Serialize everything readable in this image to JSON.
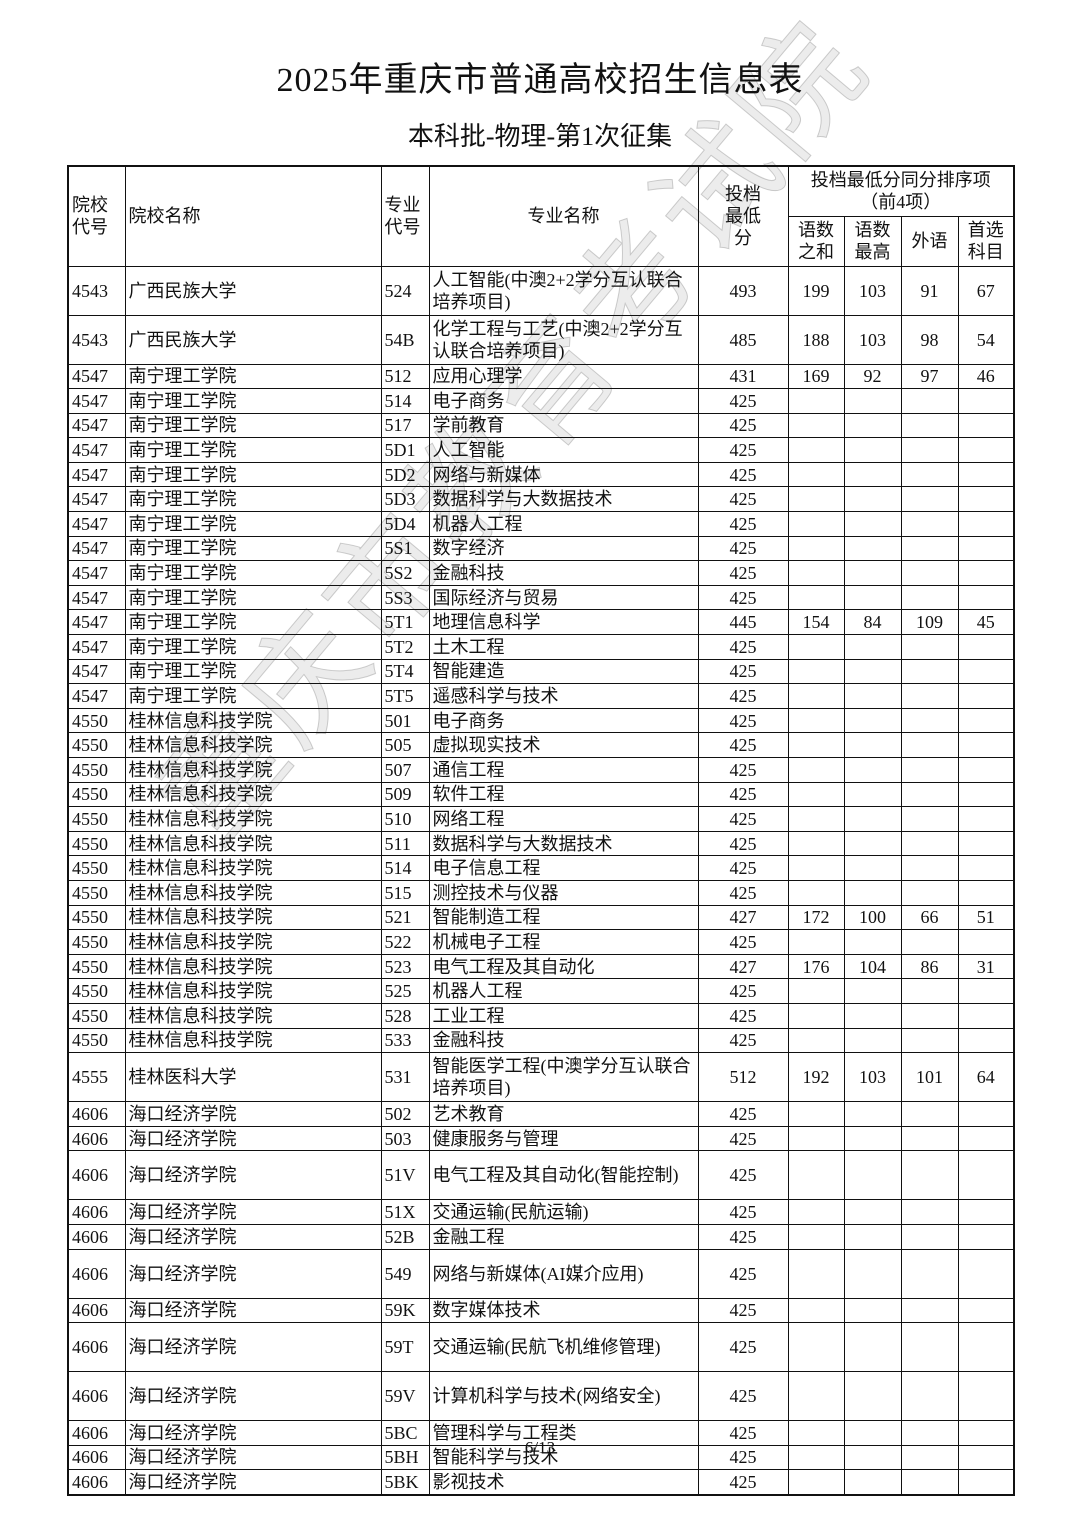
{
  "title": "2025年重庆市普通高校招生信息表",
  "subtitle": "本科批-物理-第1次征集",
  "headers": {
    "school_code": "院校代号",
    "school_name": "院校名称",
    "major_code": "专业代号",
    "major_name": "专业名称",
    "min_score": "投档最低分",
    "tiebreak_group": "投档最低分同分排序项（前4项）",
    "yushu_sum": "语数之和",
    "yushu_max": "语数最高",
    "foreign": "外语",
    "first_subject": "首选科目"
  },
  "rows": [
    [
      "4543",
      "广西民族大学",
      "524",
      "人工智能(中澳2+2学分互认联合培养项目)",
      "493",
      "199",
      "103",
      "91",
      "67"
    ],
    [
      "4543",
      "广西民族大学",
      "54B",
      "化学工程与工艺(中澳2+2学分互认联合培养项目)",
      "485",
      "188",
      "103",
      "98",
      "54"
    ],
    [
      "4547",
      "南宁理工学院",
      "512",
      "应用心理学",
      "431",
      "169",
      "92",
      "97",
      "46"
    ],
    [
      "4547",
      "南宁理工学院",
      "514",
      "电子商务",
      "425",
      "",
      "",
      "",
      ""
    ],
    [
      "4547",
      "南宁理工学院",
      "517",
      "学前教育",
      "425",
      "",
      "",
      "",
      ""
    ],
    [
      "4547",
      "南宁理工学院",
      "5D1",
      "人工智能",
      "425",
      "",
      "",
      "",
      ""
    ],
    [
      "4547",
      "南宁理工学院",
      "5D2",
      "网络与新媒体",
      "425",
      "",
      "",
      "",
      ""
    ],
    [
      "4547",
      "南宁理工学院",
      "5D3",
      "数据科学与大数据技术",
      "425",
      "",
      "",
      "",
      ""
    ],
    [
      "4547",
      "南宁理工学院",
      "5D4",
      "机器人工程",
      "425",
      "",
      "",
      "",
      ""
    ],
    [
      "4547",
      "南宁理工学院",
      "5S1",
      "数字经济",
      "425",
      "",
      "",
      "",
      ""
    ],
    [
      "4547",
      "南宁理工学院",
      "5S2",
      "金融科技",
      "425",
      "",
      "",
      "",
      ""
    ],
    [
      "4547",
      "南宁理工学院",
      "5S3",
      "国际经济与贸易",
      "425",
      "",
      "",
      "",
      ""
    ],
    [
      "4547",
      "南宁理工学院",
      "5T1",
      "地理信息科学",
      "445",
      "154",
      "84",
      "109",
      "45"
    ],
    [
      "4547",
      "南宁理工学院",
      "5T2",
      "土木工程",
      "425",
      "",
      "",
      "",
      ""
    ],
    [
      "4547",
      "南宁理工学院",
      "5T4",
      "智能建造",
      "425",
      "",
      "",
      "",
      ""
    ],
    [
      "4547",
      "南宁理工学院",
      "5T5",
      "遥感科学与技术",
      "425",
      "",
      "",
      "",
      ""
    ],
    [
      "4550",
      "桂林信息科技学院",
      "501",
      "电子商务",
      "425",
      "",
      "",
      "",
      ""
    ],
    [
      "4550",
      "桂林信息科技学院",
      "505",
      "虚拟现实技术",
      "425",
      "",
      "",
      "",
      ""
    ],
    [
      "4550",
      "桂林信息科技学院",
      "507",
      "通信工程",
      "425",
      "",
      "",
      "",
      ""
    ],
    [
      "4550",
      "桂林信息科技学院",
      "509",
      "软件工程",
      "425",
      "",
      "",
      "",
      ""
    ],
    [
      "4550",
      "桂林信息科技学院",
      "510",
      "网络工程",
      "425",
      "",
      "",
      "",
      ""
    ],
    [
      "4550",
      "桂林信息科技学院",
      "511",
      "数据科学与大数据技术",
      "425",
      "",
      "",
      "",
      ""
    ],
    [
      "4550",
      "桂林信息科技学院",
      "514",
      "电子信息工程",
      "425",
      "",
      "",
      "",
      ""
    ],
    [
      "4550",
      "桂林信息科技学院",
      "515",
      "测控技术与仪器",
      "425",
      "",
      "",
      "",
      ""
    ],
    [
      "4550",
      "桂林信息科技学院",
      "521",
      "智能制造工程",
      "427",
      "172",
      "100",
      "66",
      "51"
    ],
    [
      "4550",
      "桂林信息科技学院",
      "522",
      "机械电子工程",
      "425",
      "",
      "",
      "",
      ""
    ],
    [
      "4550",
      "桂林信息科技学院",
      "523",
      "电气工程及其自动化",
      "427",
      "176",
      "104",
      "86",
      "31"
    ],
    [
      "4550",
      "桂林信息科技学院",
      "525",
      "机器人工程",
      "425",
      "",
      "",
      "",
      ""
    ],
    [
      "4550",
      "桂林信息科技学院",
      "528",
      "工业工程",
      "425",
      "",
      "",
      "",
      ""
    ],
    [
      "4550",
      "桂林信息科技学院",
      "533",
      "金融科技",
      "425",
      "",
      "",
      "",
      ""
    ],
    [
      "4555",
      "桂林医科大学",
      "531",
      "智能医学工程(中澳学分互认联合培养项目)",
      "512",
      "192",
      "103",
      "101",
      "64"
    ],
    [
      "4606",
      "海口经济学院",
      "502",
      "艺术教育",
      "425",
      "",
      "",
      "",
      ""
    ],
    [
      "4606",
      "海口经济学院",
      "503",
      "健康服务与管理",
      "425",
      "",
      "",
      "",
      ""
    ],
    [
      "4606",
      "海口经济学院",
      "51V",
      "电气工程及其自动化(智能控制)",
      "425",
      "",
      "",
      "",
      ""
    ],
    [
      "4606",
      "海口经济学院",
      "51X",
      "交通运输(民航运输)",
      "425",
      "",
      "",
      "",
      ""
    ],
    [
      "4606",
      "海口经济学院",
      "52B",
      "金融工程",
      "425",
      "",
      "",
      "",
      ""
    ],
    [
      "4606",
      "海口经济学院",
      "549",
      "网络与新媒体(AI媒介应用)",
      "425",
      "",
      "",
      "",
      ""
    ],
    [
      "4606",
      "海口经济学院",
      "59K",
      "数字媒体技术",
      "425",
      "",
      "",
      "",
      ""
    ],
    [
      "4606",
      "海口经济学院",
      "59T",
      "交通运输(民航飞机维修管理)",
      "425",
      "",
      "",
      "",
      ""
    ],
    [
      "4606",
      "海口经济学院",
      "59V",
      "计算机科学与技术(网络安全)",
      "425",
      "",
      "",
      "",
      ""
    ],
    [
      "4606",
      "海口经济学院",
      "5BC",
      "管理科学与工程类",
      "425",
      "",
      "",
      "",
      ""
    ],
    [
      "4606",
      "海口经济学院",
      "5BH",
      "智能科学与技术",
      "425",
      "",
      "",
      "",
      ""
    ],
    [
      "4606",
      "海口经济学院",
      "5BK",
      "影视技术",
      "425",
      "",
      "",
      "",
      ""
    ]
  ],
  "watermark": "重庆市教育考试院",
  "page_number": "6/13"
}
